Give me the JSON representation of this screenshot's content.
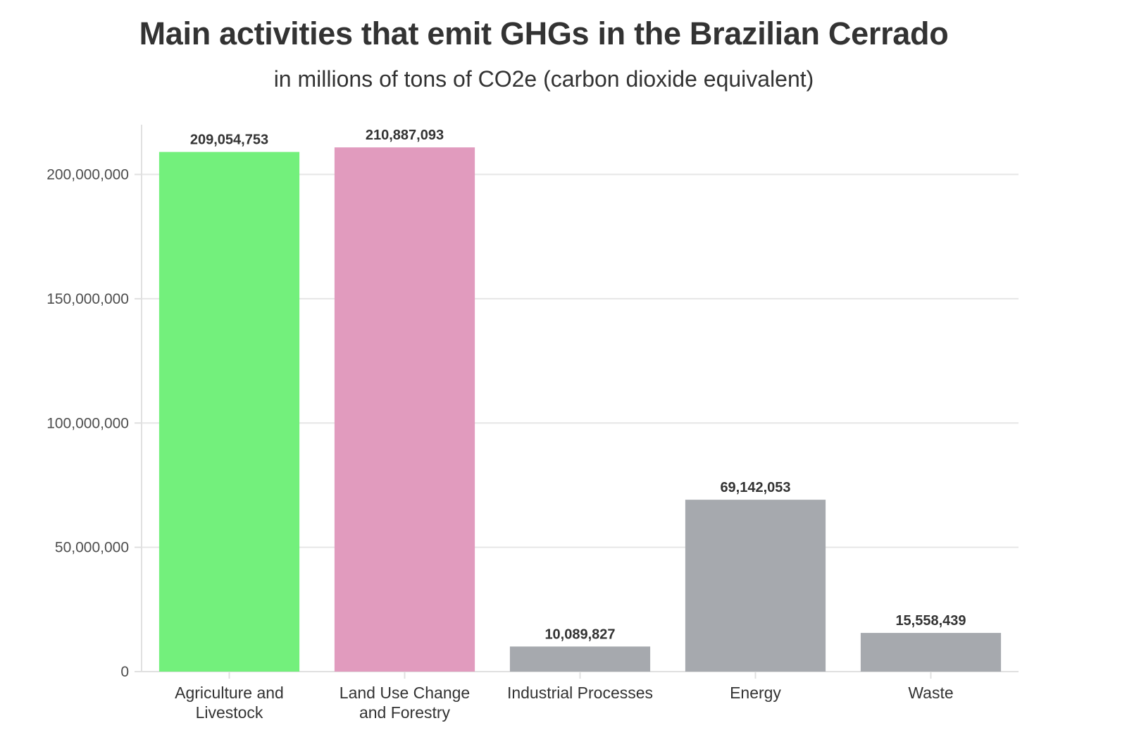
{
  "chart_data": {
    "type": "bar",
    "title": "Main activities that emit GHGs in the Brazilian Cerrado",
    "subtitle": "in millions of tons of CO2e (carbon dioxide equivalent)",
    "xlabel": "",
    "ylabel": "",
    "ylim": [
      0,
      220000000
    ],
    "yticks": [
      0,
      50000000,
      100000000,
      150000000,
      200000000
    ],
    "ytick_labels": [
      "0",
      "50,000,000",
      "100,000,000",
      "150,000,000",
      "200,000,000"
    ],
    "grid": true,
    "legend": "none",
    "categories": [
      [
        "Agriculture and",
        "Livestock"
      ],
      [
        "Land Use Change",
        "and Forestry"
      ],
      [
        "Industrial Processes"
      ],
      [
        "Energy"
      ],
      [
        "Waste"
      ]
    ],
    "values": [
      209054753,
      210887093,
      10089827,
      69142053,
      15558439
    ],
    "value_labels": [
      "209,054,753",
      "210,887,093",
      "10,089,827",
      "69,142,053",
      "15,558,439"
    ],
    "colors": [
      "#73f07c",
      "#e19bbe",
      "#a6a9ae",
      "#a6a9ae",
      "#a6a9ae"
    ],
    "grid_color": "#e6e6e6",
    "axis_color": "#e0e0e0"
  }
}
